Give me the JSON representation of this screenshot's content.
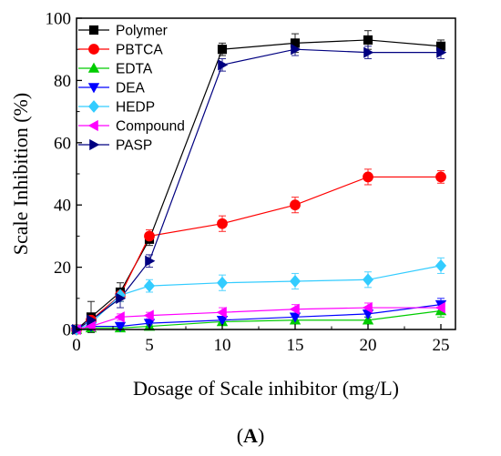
{
  "chart_data": {
    "type": "line",
    "xlabel": "Dosage of Scale inhibitor (mg/L)",
    "ylabel": "Scale Inhibition (%)",
    "xlim": [
      0,
      26
    ],
    "ylim": [
      0,
      100
    ],
    "xticks": [
      0,
      5,
      10,
      15,
      20,
      25
    ],
    "yticks": [
      0,
      20,
      40,
      60,
      80,
      100
    ],
    "grid": false,
    "legend_position": "top-left",
    "panel_label_open": "(",
    "panel_label_letter": "A",
    "panel_label_close": ")",
    "series": [
      {
        "name": "Polymer",
        "color": "#000000",
        "marker": "square",
        "x": [
          0,
          1,
          3,
          5,
          10,
          15,
          20,
          25
        ],
        "y": [
          0,
          4,
          12,
          29,
          90,
          92,
          93,
          91
        ],
        "err": [
          0,
          5,
          3,
          2,
          2,
          3,
          3,
          2
        ]
      },
      {
        "name": "PBTCA",
        "color": "#ff0000",
        "marker": "circle",
        "x": [
          0,
          1,
          3,
          5,
          10,
          15,
          20,
          25
        ],
        "y": [
          0,
          3,
          11,
          30,
          34,
          40,
          49,
          49
        ],
        "err": [
          0,
          1,
          2,
          2,
          2.5,
          2.5,
          2.5,
          2
        ]
      },
      {
        "name": "EDTA",
        "color": "#00cc00",
        "marker": "triangle-up",
        "x": [
          0,
          1,
          3,
          5,
          10,
          15,
          20,
          25
        ],
        "y": [
          0,
          0.5,
          0.5,
          1,
          2.5,
          3,
          3,
          6
        ],
        "err": [
          0,
          0.5,
          0.5,
          0.5,
          1,
          1,
          1,
          2
        ]
      },
      {
        "name": "DEA",
        "color": "#0000ff",
        "marker": "triangle-down",
        "x": [
          0,
          1,
          3,
          5,
          10,
          15,
          20,
          25
        ],
        "y": [
          0,
          1,
          1,
          2,
          3,
          4,
          5,
          8
        ],
        "err": [
          0,
          0.5,
          0.5,
          1,
          1,
          1,
          1,
          2
        ]
      },
      {
        "name": "HEDP",
        "color": "#33ccff",
        "marker": "diamond",
        "x": [
          0,
          1,
          3,
          5,
          10,
          15,
          20,
          25
        ],
        "y": [
          0,
          2,
          11,
          14,
          15,
          15.5,
          16,
          20.5
        ],
        "err": [
          0,
          1,
          2,
          2,
          2.5,
          2.5,
          2.5,
          2.5
        ]
      },
      {
        "name": "Compound",
        "color": "#ff00ff",
        "marker": "triangle-left",
        "x": [
          0,
          1,
          3,
          5,
          10,
          15,
          20,
          25
        ],
        "y": [
          0,
          1,
          4,
          4.5,
          5.5,
          6.5,
          7,
          7
        ],
        "err": [
          0,
          1,
          1,
          1,
          1.5,
          1.5,
          1.5,
          1.5
        ]
      },
      {
        "name": "PASP",
        "color": "#000080",
        "marker": "triangle-right",
        "x": [
          0,
          1,
          3,
          5,
          10,
          15,
          20,
          25
        ],
        "y": [
          0,
          3,
          10,
          22,
          85,
          90,
          89,
          89
        ],
        "err": [
          0,
          2,
          3,
          2,
          2,
          2,
          2,
          2
        ]
      }
    ]
  }
}
